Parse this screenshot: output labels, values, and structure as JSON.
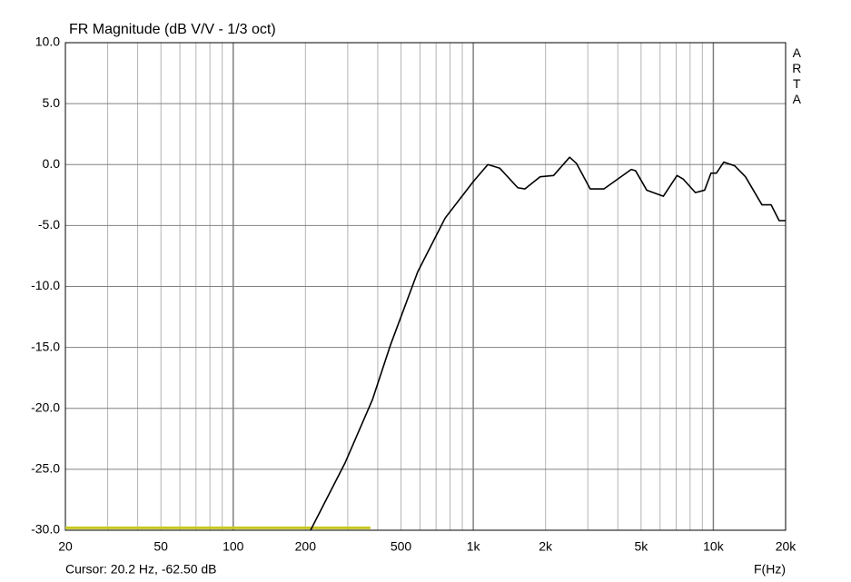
{
  "chart_data": {
    "type": "line",
    "title": "FR Magnitude (dB V/V - 1/3 oct)",
    "watermark": "ARTA",
    "cursor_text": "Cursor: 20.2 Hz, -62.50 dB",
    "xlabel": "F(Hz)",
    "xscale": "log",
    "grid": true,
    "xlim": [
      20,
      20000
    ],
    "ylim": [
      -30,
      10
    ],
    "xticks": [
      20,
      50,
      100,
      200,
      500,
      {
        "value": 1000,
        "label": "1k"
      },
      {
        "value": 2000,
        "label": "2k"
      },
      {
        "value": 5000,
        "label": "5k"
      },
      {
        "value": 10000,
        "label": "10k"
      },
      {
        "value": 20000,
        "label": "20k"
      }
    ],
    "xgrid": [
      30,
      40,
      60,
      70,
      80,
      90,
      300,
      400,
      600,
      700,
      800,
      900,
      3000,
      4000,
      6000,
      7000,
      8000,
      9000
    ],
    "yticks": [
      {
        "value": 10,
        "label": "10.0"
      },
      {
        "value": 5,
        "label": "5.0"
      },
      {
        "value": 0,
        "label": "0.0"
      },
      {
        "value": -5,
        "label": "-5.0"
      },
      {
        "value": -10,
        "label": "-10.0"
      },
      {
        "value": -15,
        "label": "-15.0"
      },
      {
        "value": -20,
        "label": "-20.0"
      },
      {
        "value": -25,
        "label": "-25.0"
      },
      {
        "value": -30,
        "label": "-30.0"
      }
    ],
    "series": [
      {
        "color": "#c8c81e",
        "x": [
          20,
          373
        ],
        "values": [
          -29.8,
          -29.8
        ]
      },
      {
        "color": "#000000",
        "x": [
          210,
          292,
          380,
          452,
          587,
          763,
          1000,
          1150,
          1290,
          1532,
          1640,
          1900,
          2160,
          2520,
          2690,
          3070,
          3500,
          3990,
          4550,
          4740,
          5280,
          6190,
          7060,
          7500,
          8420,
          9200,
          9780,
          10300,
          11050,
          12270,
          13610,
          15940,
          17400,
          18800,
          20000
        ],
        "values": [
          -30,
          -24.5,
          -19.3,
          -14.8,
          -8.8,
          -4.4,
          -1.4,
          0.0,
          -0.3,
          -1.9,
          -2.0,
          -1.0,
          -0.9,
          0.6,
          0.1,
          -2.0,
          -2.0,
          -1.2,
          -0.4,
          -0.5,
          -2.1,
          -2.6,
          -0.9,
          -1.2,
          -2.3,
          -2.1,
          -0.7,
          -0.7,
          0.2,
          -0.1,
          -1.0,
          -3.3,
          -3.3,
          -4.6,
          -4.6
        ]
      }
    ]
  }
}
